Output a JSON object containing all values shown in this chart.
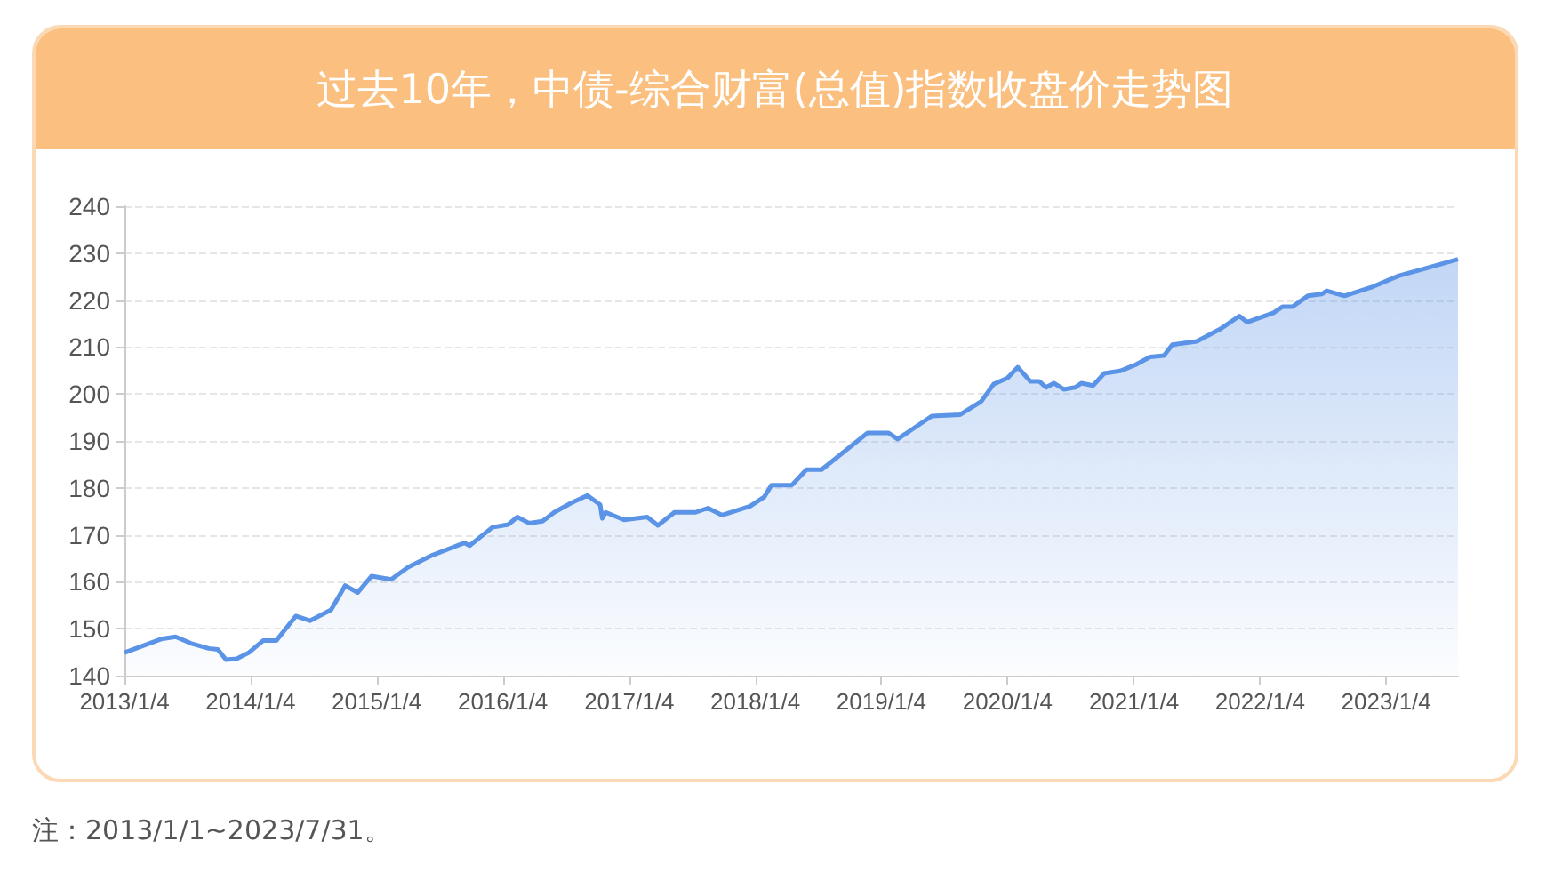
{
  "chart_data": {
    "type": "area",
    "title": "过去10年，中债-综合财富(总值)指数收盘价走势图",
    "annotations": [
      "注：2013/1/1~2023/7/31。"
    ],
    "color": "#5b93e6",
    "grid": "y",
    "marker": "none",
    "line_style": "solid",
    "x": [
      "2013-01-04",
      "2013-04-20",
      "2013-06-01",
      "2013-07-15",
      "2013-09-05",
      "2013-10-01",
      "2013-10-25",
      "2013-11-25",
      "2013-12-30",
      "2014-02-10",
      "2014-03-20",
      "2014-05-15",
      "2014-06-25",
      "2014-08-25",
      "2014-10-05",
      "2014-11-10",
      "2014-12-20",
      "2015-02-15",
      "2015-04-05",
      "2015-06-15",
      "2015-09-15",
      "2015-09-30",
      "2015-12-05",
      "2016-01-20",
      "2016-02-15",
      "2016-03-20",
      "2016-04-28",
      "2016-06-01",
      "2016-07-20",
      "2016-09-05",
      "2016-10-12",
      "2016-10-18",
      "2016-10-28",
      "2016-12-20",
      "2017-02-25",
      "2017-03-28",
      "2017-05-15",
      "2017-07-15",
      "2017-08-20",
      "2017-09-30",
      "2017-12-20",
      "2018-01-30",
      "2018-02-20",
      "2018-04-20",
      "2018-06-01",
      "2018-07-15",
      "2018-11-25",
      "2019-01-25",
      "2019-02-20",
      "2019-05-30",
      "2019-08-20",
      "2019-10-20",
      "2019-11-25",
      "2020-01-04",
      "2020-02-03",
      "2020-03-10",
      "2020-04-05",
      "2020-04-25",
      "2020-05-18",
      "2020-06-15",
      "2020-07-18",
      "2020-08-05",
      "2020-09-08",
      "2020-10-10",
      "2020-11-25",
      "2021-01-08",
      "2021-02-20",
      "2021-04-01",
      "2021-04-25",
      "2021-07-05",
      "2021-09-10",
      "2021-11-05",
      "2021-11-28",
      "2022-02-12",
      "2022-03-10",
      "2022-04-08",
      "2022-05-22",
      "2022-07-02",
      "2022-07-16",
      "2022-09-05",
      "2022-11-28",
      "2023-02-10",
      "2023-04-10",
      "2023-07-31"
    ],
    "values": [
      144.9,
      147.8,
      148.3,
      146.9,
      145.8,
      145.6,
      143.4,
      143.6,
      144.9,
      147.5,
      147.5,
      152.7,
      151.7,
      154,
      159.2,
      157.7,
      161.2,
      160.5,
      163.1,
      165.7,
      168.3,
      167.7,
      171.6,
      172.2,
      173.8,
      172.5,
      172.9,
      174.8,
      176.8,
      178.4,
      176.4,
      173.5,
      174.8,
      173.2,
      173.8,
      172,
      174.8,
      174.8,
      175.7,
      174.2,
      176.1,
      178.1,
      180.6,
      180.6,
      183.9,
      183.9,
      191.7,
      191.7,
      190.4,
      195.3,
      195.6,
      198.4,
      202.1,
      203.4,
      205.7,
      202.7,
      202.7,
      201.4,
      202.3,
      201,
      201.4,
      202.3,
      201.8,
      204.4,
      204.9,
      206.2,
      207.9,
      208.2,
      210.5,
      211.2,
      213.8,
      216.6,
      215.3,
      217.3,
      218.6,
      218.6,
      220.9,
      221.3,
      222,
      220.9,
      222.9,
      225.2,
      226.4,
      228.7
    ],
    "xlim": [
      "2013-01-04",
      "2023-07-31"
    ],
    "xticks": [
      {
        "value": "2013-01-04",
        "label": "2013/1/4"
      },
      {
        "value": "2014-01-04",
        "label": "2014/1/4"
      },
      {
        "value": "2015-01-04",
        "label": "2015/1/4"
      },
      {
        "value": "2016-01-04",
        "label": "2016/1/4"
      },
      {
        "value": "2017-01-04",
        "label": "2017/1/4"
      },
      {
        "value": "2018-01-04",
        "label": "2018/1/4"
      },
      {
        "value": "2019-01-04",
        "label": "2019/1/4"
      },
      {
        "value": "2020-01-04",
        "label": "2020/1/4"
      },
      {
        "value": "2021-01-04",
        "label": "2021/1/4"
      },
      {
        "value": "2022-01-04",
        "label": "2022/1/4"
      },
      {
        "value": "2023-01-04",
        "label": "2023/1/4"
      }
    ],
    "ylim": [
      140,
      240
    ],
    "yticks": [
      140,
      150,
      160,
      170,
      180,
      190,
      200,
      210,
      220,
      230,
      240
    ]
  }
}
